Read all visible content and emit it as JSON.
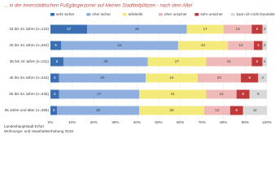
{
  "chart_data": {
    "type": "stacked_barh",
    "title": "... in der innerstädtischen Fußgängerzone/ auf kleinen Stadtteilplätzen - nach dem Alter",
    "categories": [
      "18 bis 24 Jahre (n=123)",
      "25 bis 34 Jahre (n=264)",
      "35 bis 44 Jahre (n=311)",
      "45 bis 54 Jahre (n=315)",
      "55 bis 64 Jahre (n=345)",
      "65 Jahre und älter (n=395)"
    ],
    "series": [
      {
        "name": "sehr sicher",
        "color": "#3b6fb1",
        "values": [
          17,
          5,
          6,
          4,
          4,
          3
        ]
      },
      {
        "name": "eher sicher",
        "color": "#8fb0de",
        "values": [
          46,
          54,
          39,
          40,
          37,
          38
        ]
      },
      {
        "name": "teils/teils",
        "color": "#f4ea7c",
        "values": [
          17,
          23,
          27,
          24,
          31,
          30
        ]
      },
      {
        "name": "eher unsicher",
        "color": "#efb9b9",
        "values": [
          13,
          12,
          21,
          20,
          14,
          12
        ]
      },
      {
        "name": "sehr unsicher",
        "color": "#c0393b",
        "values": [
          5,
          4,
          5,
          8,
          6,
          6
        ]
      },
      {
        "name": "kann ich nicht beurteilen",
        "color": "#d9d9d9",
        "values": [
          2,
          2,
          2,
          4,
          8,
          11
        ]
      }
    ],
    "xlim": [
      0,
      100
    ],
    "xticks": [
      {
        "value": 0,
        "label": "0%"
      },
      {
        "value": 10,
        "label": "10%"
      },
      {
        "value": 20,
        "label": "20%"
      },
      {
        "value": 30,
        "label": "30%"
      },
      {
        "value": 40,
        "label": "40%"
      },
      {
        "value": 50,
        "label": "50%"
      },
      {
        "value": 60,
        "label": "60%"
      },
      {
        "value": 70,
        "label": "70%"
      },
      {
        "value": 80,
        "label": "80%"
      },
      {
        "value": 90,
        "label": "90%"
      },
      {
        "value": 100,
        "label": "100%"
      }
    ],
    "grid": true,
    "source": [
      "Landeshauptstadt Erfurt",
      "Wohnungs- und Haushaltserhebung 2018"
    ]
  }
}
